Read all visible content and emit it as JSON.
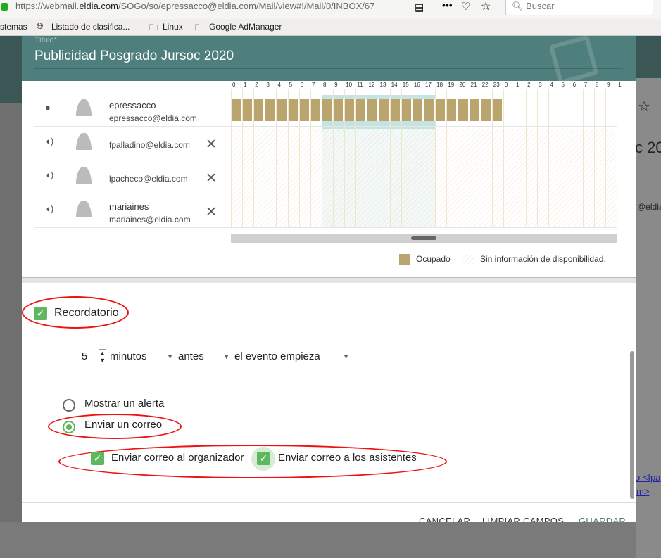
{
  "browser": {
    "url_prefix": "https://webmail.",
    "url_domain": "eldia.com",
    "url_rest": "/SOGo/so/epressacco@eldia.com/Mail/view#!/Mail/0/INBOX/67",
    "search_placeholder": "Buscar",
    "bookmarks": [
      "stemas",
      "Listado de clasifica...",
      "Linux",
      "Google AdManager"
    ]
  },
  "dialog": {
    "title_label": "Título*",
    "title": "Publicidad Posgrado Jursoc 2020"
  },
  "timeline": {
    "hours": [
      "0",
      "1",
      "2",
      "3",
      "4",
      "5",
      "6",
      "7",
      "8",
      "9",
      "10",
      "11",
      "12",
      "13",
      "14",
      "15",
      "16",
      "17",
      "18",
      "19",
      "20",
      "21",
      "22",
      "23",
      "0",
      "1",
      "2",
      "3",
      "4",
      "5",
      "6",
      "7",
      "8",
      "9",
      "1"
    ],
    "work_hours": [
      8,
      17
    ],
    "attendees": [
      {
        "name": "epressacco",
        "email": "epressacco@eldia.com",
        "role": "organizer",
        "busy_hours": [
          0,
          23
        ]
      },
      {
        "name": "",
        "email": "fpalladino@eldia.com",
        "role": "attendee",
        "busy_hours": null
      },
      {
        "name": "",
        "email": "lpacheco@eldia.com",
        "role": "attendee",
        "busy_hours": null
      },
      {
        "name": "mariaines",
        "email": "mariaines@eldia.com",
        "role": "attendee",
        "busy_hours": null
      }
    ],
    "legend_busy": "Ocupado",
    "legend_unknown": "Sin información de disponibilidad."
  },
  "reminder": {
    "label": "Recordatorio",
    "checked": true,
    "quantity": "5",
    "unit": "minutos",
    "relation": "antes",
    "reference": "el evento empieza",
    "show_alert": "Mostrar un alerta",
    "send_mail": "Enviar un correo",
    "selected": "send_mail",
    "to_organizer": "Enviar correo al organizador",
    "to_attendees": "Enviar correo a los asistentes"
  },
  "footer": {
    "cancel": "CANCELAR",
    "reset": "LIMPIAR CAMPOS",
    "save": "GUARDAR"
  },
  "background": {
    "title_fragment": "c 20",
    "email_fragment": "@eldia",
    "link1": "o <fpa",
    "link2": "m>"
  },
  "colors": {
    "header": "#4f7f7d",
    "busy": "#bba56f",
    "work": "#c5e3e3",
    "check": "#5fb760",
    "annotation": "#e11111"
  }
}
